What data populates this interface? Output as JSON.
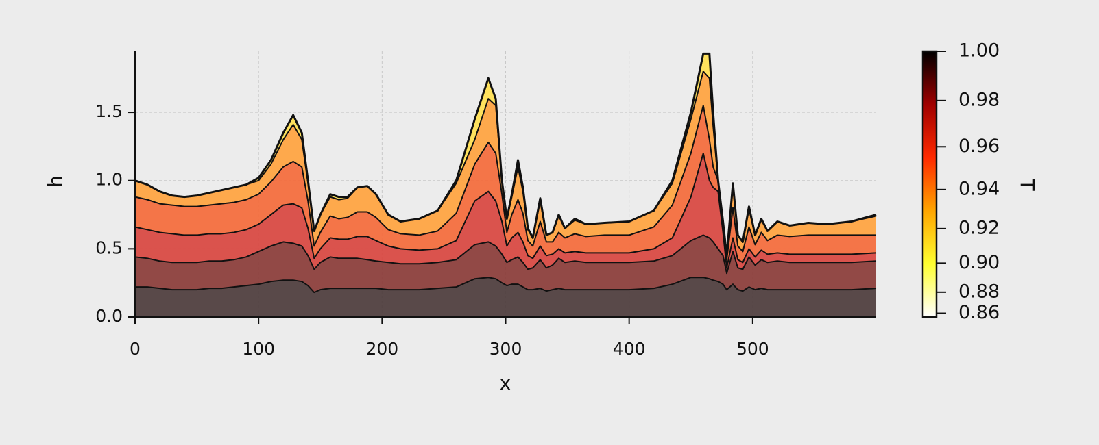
{
  "chart_data": {
    "type": "layered_line",
    "xlabel": "x",
    "ylabel": "h",
    "xlim": [
      0,
      600
    ],
    "ylim": [
      0,
      1.947
    ],
    "xticks": [
      0,
      100,
      200,
      300,
      400,
      500
    ],
    "yticks": [
      {
        "value": 0,
        "label": "0.0"
      },
      0.5,
      {
        "value": 1,
        "label": "1.0"
      },
      1.5
    ],
    "grid": true,
    "line_color": "#111111",
    "band_colors": [
      "#4c3b3b",
      "#8a3b37",
      "#d8453f",
      "#f46a3a",
      "#ffa33e",
      "#ffe050"
    ],
    "x": [
      0,
      10,
      20,
      30,
      40,
      50,
      60,
      70,
      80,
      90,
      100,
      110,
      120,
      128,
      135,
      140,
      145,
      150,
      158,
      165,
      172,
      180,
      188,
      195,
      205,
      215,
      230,
      245,
      260,
      275,
      286,
      292,
      297,
      301,
      305,
      310,
      314,
      318,
      322,
      328,
      333,
      338,
      343,
      348,
      356,
      365,
      380,
      400,
      420,
      435,
      450,
      460,
      465,
      468,
      472,
      476,
      479,
      484,
      488,
      492,
      497,
      502,
      507,
      512,
      520,
      530,
      545,
      560,
      580,
      600
    ],
    "series": [
      {
        "values": [
          0.22,
          0.22,
          0.21,
          0.2,
          0.2,
          0.2,
          0.21,
          0.21,
          0.22,
          0.23,
          0.24,
          0.26,
          0.27,
          0.27,
          0.26,
          0.23,
          0.18,
          0.2,
          0.21,
          0.21,
          0.21,
          0.21,
          0.21,
          0.21,
          0.2,
          0.2,
          0.2,
          0.21,
          0.22,
          0.28,
          0.29,
          0.28,
          0.25,
          0.23,
          0.24,
          0.24,
          0.22,
          0.2,
          0.2,
          0.21,
          0.19,
          0.2,
          0.21,
          0.2,
          0.2,
          0.2,
          0.2,
          0.2,
          0.21,
          0.24,
          0.29,
          0.29,
          0.28,
          0.27,
          0.26,
          0.24,
          0.2,
          0.24,
          0.2,
          0.19,
          0.22,
          0.2,
          0.21,
          0.2,
          0.2,
          0.2,
          0.2,
          0.2,
          0.2,
          0.21
        ]
      },
      {
        "values": [
          0.44,
          0.43,
          0.41,
          0.4,
          0.4,
          0.4,
          0.41,
          0.41,
          0.42,
          0.44,
          0.48,
          0.52,
          0.55,
          0.54,
          0.52,
          0.45,
          0.35,
          0.4,
          0.44,
          0.43,
          0.43,
          0.43,
          0.42,
          0.41,
          0.4,
          0.39,
          0.39,
          0.4,
          0.42,
          0.53,
          0.55,
          0.52,
          0.46,
          0.4,
          0.42,
          0.44,
          0.4,
          0.35,
          0.36,
          0.42,
          0.36,
          0.38,
          0.43,
          0.4,
          0.41,
          0.4,
          0.4,
          0.4,
          0.41,
          0.45,
          0.56,
          0.6,
          0.58,
          0.55,
          0.5,
          0.45,
          0.32,
          0.48,
          0.36,
          0.35,
          0.44,
          0.38,
          0.42,
          0.4,
          0.41,
          0.4,
          0.4,
          0.4,
          0.4,
          0.41
        ]
      },
      {
        "values": [
          0.66,
          0.64,
          0.62,
          0.61,
          0.6,
          0.6,
          0.61,
          0.61,
          0.62,
          0.64,
          0.68,
          0.75,
          0.82,
          0.83,
          0.8,
          0.65,
          0.43,
          0.5,
          0.58,
          0.57,
          0.57,
          0.59,
          0.59,
          0.56,
          0.52,
          0.5,
          0.49,
          0.5,
          0.56,
          0.85,
          0.92,
          0.85,
          0.7,
          0.52,
          0.58,
          0.62,
          0.55,
          0.45,
          0.43,
          0.52,
          0.45,
          0.46,
          0.5,
          0.47,
          0.48,
          0.47,
          0.47,
          0.47,
          0.5,
          0.58,
          0.88,
          1.2,
          1.0,
          0.95,
          0.92,
          0.62,
          0.36,
          0.58,
          0.42,
          0.4,
          0.5,
          0.44,
          0.49,
          0.46,
          0.47,
          0.46,
          0.46,
          0.46,
          0.46,
          0.47
        ]
      },
      {
        "values": [
          0.88,
          0.86,
          0.83,
          0.82,
          0.81,
          0.81,
          0.82,
          0.83,
          0.84,
          0.86,
          0.9,
          0.99,
          1.1,
          1.14,
          1.1,
          0.85,
          0.52,
          0.62,
          0.74,
          0.72,
          0.73,
          0.77,
          0.77,
          0.73,
          0.64,
          0.61,
          0.6,
          0.63,
          0.76,
          1.12,
          1.28,
          1.2,
          0.9,
          0.62,
          0.75,
          0.86,
          0.76,
          0.56,
          0.52,
          0.7,
          0.55,
          0.55,
          0.62,
          0.58,
          0.61,
          0.59,
          0.6,
          0.6,
          0.66,
          0.82,
          1.2,
          1.55,
          1.3,
          1.1,
          1.0,
          0.68,
          0.42,
          0.8,
          0.52,
          0.48,
          0.66,
          0.53,
          0.62,
          0.56,
          0.6,
          0.59,
          0.6,
          0.6,
          0.6,
          0.6
        ]
      },
      {
        "values": [
          1.0,
          0.97,
          0.92,
          0.89,
          0.88,
          0.89,
          0.91,
          0.93,
          0.95,
          0.97,
          1.0,
          1.12,
          1.3,
          1.41,
          1.3,
          0.98,
          0.63,
          0.75,
          0.88,
          0.86,
          0.87,
          0.95,
          0.96,
          0.9,
          0.75,
          0.7,
          0.72,
          0.78,
          0.98,
          1.3,
          1.6,
          1.55,
          1.0,
          0.72,
          0.88,
          1.1,
          0.92,
          0.64,
          0.58,
          0.85,
          0.6,
          0.62,
          0.74,
          0.65,
          0.71,
          0.68,
          0.69,
          0.7,
          0.78,
          0.98,
          1.45,
          1.8,
          1.75,
          1.4,
          1.0,
          0.7,
          0.45,
          0.95,
          0.6,
          0.55,
          0.79,
          0.6,
          0.71,
          0.63,
          0.7,
          0.67,
          0.69,
          0.68,
          0.7,
          0.74
        ]
      },
      {
        "values": [
          1.0,
          0.97,
          0.92,
          0.89,
          0.88,
          0.89,
          0.91,
          0.93,
          0.95,
          0.97,
          1.02,
          1.15,
          1.35,
          1.48,
          1.35,
          1.0,
          0.63,
          0.75,
          0.9,
          0.88,
          0.88,
          0.95,
          0.96,
          0.9,
          0.75,
          0.7,
          0.72,
          0.78,
          1.0,
          1.45,
          1.75,
          1.6,
          1.0,
          0.72,
          0.9,
          1.15,
          0.95,
          0.65,
          0.58,
          0.87,
          0.6,
          0.62,
          0.75,
          0.65,
          0.72,
          0.68,
          0.69,
          0.7,
          0.78,
          1.0,
          1.5,
          1.93,
          1.93,
          1.5,
          1.0,
          0.7,
          0.45,
          0.98,
          0.6,
          0.55,
          0.81,
          0.6,
          0.72,
          0.63,
          0.7,
          0.67,
          0.69,
          0.68,
          0.7,
          0.75
        ]
      }
    ],
    "colorbar": {
      "label": "T",
      "clim": [
        0.853,
        1.0
      ],
      "gamma": 1.4,
      "colormap": [
        "#ffffff",
        "#ffff30",
        "#ffa500",
        "#ff2a00",
        "#a00000",
        "#000000"
      ],
      "ticks": [
        {
          "value": 1.0,
          "label": "1.00"
        },
        0.98,
        0.96,
        0.94,
        0.92,
        {
          "value": 0.9,
          "label": "0.90"
        },
        0.88,
        0.86
      ]
    }
  }
}
